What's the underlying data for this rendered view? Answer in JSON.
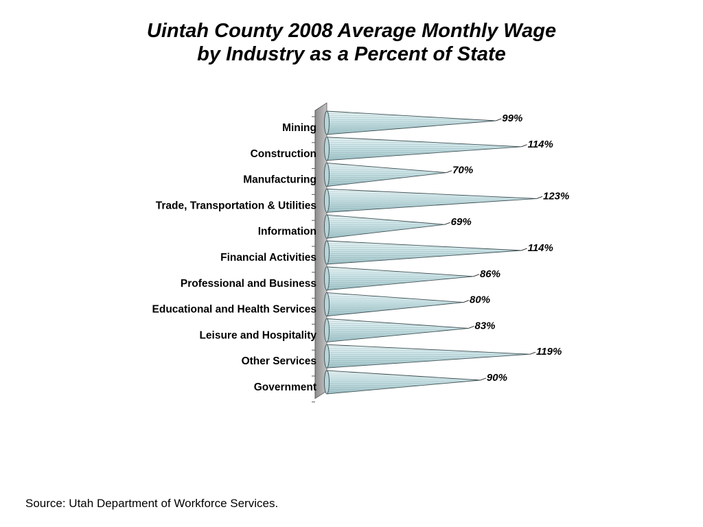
{
  "title_line1": "Uintah County 2008 Average Monthly Wage",
  "title_line2": "by Industry as a Percent of State",
  "source": "Source: Utah Department of Workforce Services.",
  "colors": {
    "cone_fill": "#c2dde1",
    "cone_highlight": "#eaf4f5",
    "cone_stroke": "#3f4e52",
    "wall_fill": "#a8a8a8"
  },
  "chart_data": {
    "type": "bar",
    "orientation": "horizontal",
    "style": "3d-cone",
    "categories": [
      "Mining",
      "Construction",
      "Manufacturing",
      "Trade, Transportation & Utilities",
      "Information",
      "Financial Activities",
      "Professional and Business",
      "Educational and Health Services",
      "Leisure and Hospitality",
      "Other Services",
      "Government"
    ],
    "values": [
      99,
      114,
      70,
      123,
      69,
      114,
      86,
      80,
      83,
      119,
      90
    ],
    "data_labels": [
      "99%",
      "114%",
      "70%",
      "123%",
      "69%",
      "114%",
      "86%",
      "80%",
      "83%",
      "119%",
      "90%"
    ],
    "xlim": [
      0,
      125
    ],
    "grid": false,
    "legend": "none"
  }
}
